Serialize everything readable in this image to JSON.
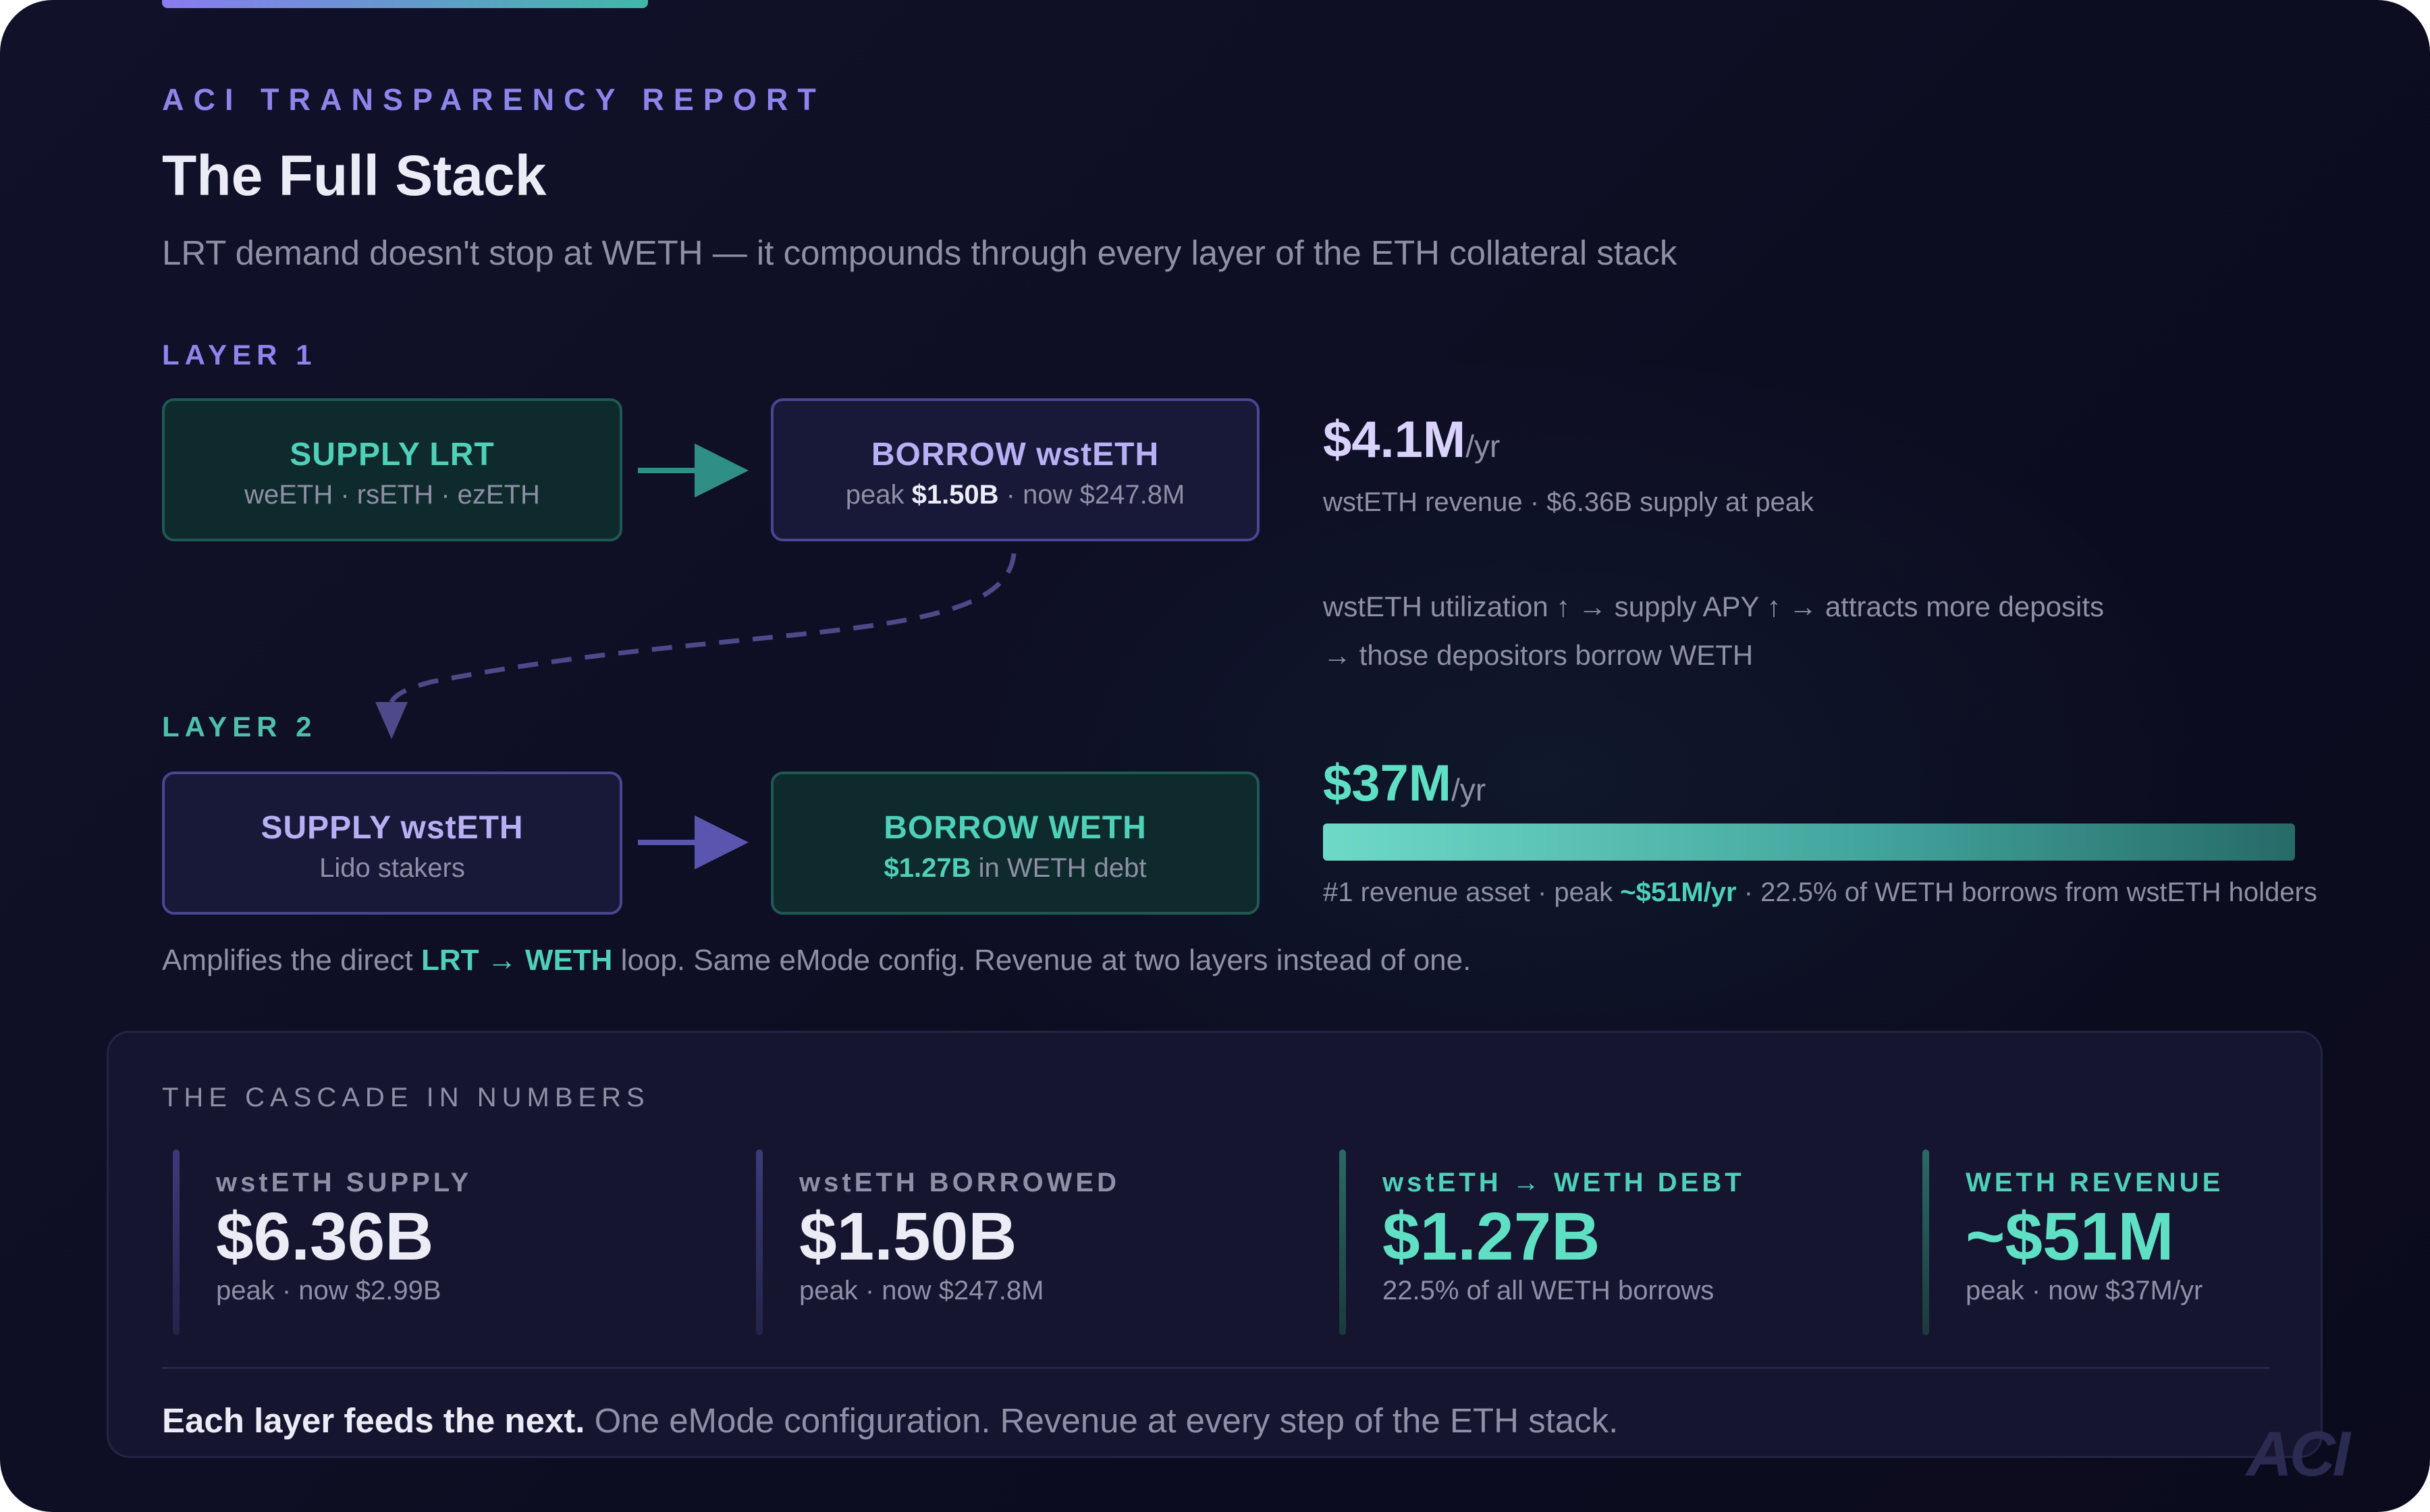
{
  "header": {
    "eyebrow": "ACI TRANSPARENCY REPORT",
    "title": "The Full Stack",
    "subtitle": "LRT demand doesn't stop at WETH — it compounds through every layer of the ETH collateral stack"
  },
  "layer1": {
    "label": "LAYER 1",
    "supply_box": {
      "title": "SUPPLY LRT",
      "subtitle": "weETH · rsETH · ezETH"
    },
    "borrow_box": {
      "title": "BORROW wstETH",
      "sub_prefix": "peak ",
      "sub_peak": "$1.50B",
      "sub_suffix": " · now $247.8M"
    },
    "revenue_value": "$4.1M",
    "revenue_unit": "/yr",
    "revenue_note": "wstETH revenue · $6.36B supply at peak",
    "flow_line1": "wstETH utilization ↑ → supply APY ↑ → attracts more deposits",
    "flow_line2": "→ those depositors borrow WETH"
  },
  "layer2": {
    "label": "LAYER 2",
    "supply_box": {
      "title": "SUPPLY wstETH",
      "subtitle": "Lido stakers"
    },
    "borrow_box": {
      "title": "BORROW WETH",
      "sub_value": "$1.27B",
      "sub_suffix": " in WETH debt"
    },
    "revenue_value": "$37M",
    "revenue_unit": "/yr",
    "revenue_bar_fraction": 1.0,
    "revenue_note_prefix": "#1 revenue asset · peak ",
    "revenue_note_peak": "~$51M/yr",
    "revenue_note_suffix": " · 22.5% of WETH borrows from wstETH holders"
  },
  "amplifies": {
    "prefix": "Amplifies the direct ",
    "highlight": "LRT → WETH",
    "suffix": " loop. Same eMode config. Revenue at two layers instead of one."
  },
  "cascade": {
    "title": "THE CASCADE IN NUMBERS",
    "stats": [
      {
        "label": "wstETH SUPPLY",
        "value": "$6.36B",
        "sub": "peak · now $2.99B"
      },
      {
        "label": "wstETH BORROWED",
        "value": "$1.50B",
        "sub": "peak · now $247.8M"
      },
      {
        "label": "wstETH → WETH DEBT",
        "value": "$1.27B",
        "sub": "22.5% of all WETH borrows"
      },
      {
        "label": "WETH REVENUE",
        "value": "~$51M",
        "sub": "peak · now $37M/yr"
      }
    ]
  },
  "footer": {
    "bold": "Each layer feeds the next.",
    "rest": " One eMode configuration. Revenue at every step of the ETH stack."
  },
  "logo": "ACI",
  "colors": {
    "accent_purple": "#8d84ec",
    "accent_teal": "#4fd0b8",
    "background": "#0d0d22"
  }
}
